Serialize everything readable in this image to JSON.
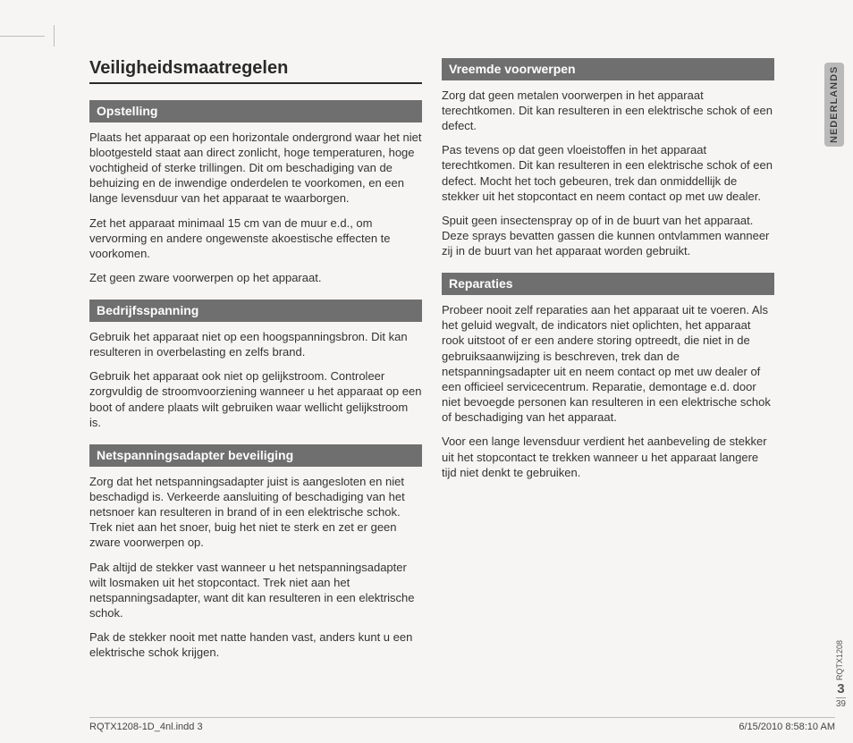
{
  "title": "Veiligheidsmaatregelen",
  "lang_tab": "NEDERLANDS",
  "side_doc": "RQTX1208",
  "side_page_big": "3",
  "side_page_small": "39",
  "footer_left": "RQTX1208-1D_4nl.indd   3",
  "footer_right": "6/15/2010   8:58:10 AM",
  "left": {
    "s1": {
      "h": "Opstelling",
      "p1": "Plaats het apparaat op een horizontale ondergrond waar het niet blootgesteld staat aan direct zonlicht, hoge temperaturen, hoge vochtigheid of sterke trillingen. Dit om beschadiging van de behuizing en de inwendige onderdelen te voorkomen, en een lange levensduur van het apparaat te waarborgen.",
      "p2": "Zet het apparaat minimaal 15 cm van de muur e.d., om vervorming en andere ongewenste akoestische effecten te voorkomen.",
      "p3": "Zet geen zware voorwerpen op het apparaat."
    },
    "s2": {
      "h": "Bedrijfsspanning",
      "p1": "Gebruik het apparaat niet op een hoogspanningsbron. Dit kan resulteren in overbelasting en zelfs brand.",
      "p2": "Gebruik het apparaat ook niet op gelijkstroom. Controleer zorgvuldig de stroomvoorziening wanneer u het apparaat op een boot of andere plaats wilt gebruiken waar wellicht gelijkstroom is."
    },
    "s3": {
      "h": "Netspanningsadapter beveiliging",
      "p1": "Zorg dat het netspanningsadapter juist is aangesloten en niet beschadigd is. Verkeerde aansluiting of beschadiging van het netsnoer kan resulteren in brand of in een elektrische schok. Trek niet aan het snoer, buig het niet te sterk en zet er geen zware voorwerpen op.",
      "p2": "Pak altijd de stekker vast wanneer u het netspanningsadapter wilt losmaken uit het stopcontact. Trek niet aan het netspanningsadapter, want dit kan resulteren in een elektrische schok.",
      "p3": "Pak de stekker nooit met natte handen vast, anders kunt u een elektrische schok krijgen."
    }
  },
  "right": {
    "s1": {
      "h": "Vreemde voorwerpen",
      "p1": "Zorg dat geen metalen voorwerpen in het apparaat terechtkomen. Dit kan resulteren in een elektrische schok of een defect.",
      "p2": "Pas tevens op dat geen vloeistoffen in het apparaat terechtkomen. Dit kan resulteren in een elektrische schok of een defect. Mocht het toch gebeuren, trek dan onmiddellijk de stekker uit het stopcontact en neem contact op met uw dealer.",
      "p3": "Spuit geen insectenspray op of in de buurt van het apparaat. Deze sprays bevatten gassen die kunnen ontvlammen wanneer zij in de buurt van het apparaat worden gebruikt."
    },
    "s2": {
      "h": "Reparaties",
      "p1": "Probeer nooit zelf reparaties aan het apparaat uit te voeren. Als het geluid wegvalt, de indicators niet oplichten, het apparaat rook uitstoot of er een andere storing optreedt, die niet in de gebruiksaanwijzing is beschreven, trek dan de netspanningsadapter uit en neem contact op met uw dealer of een officieel servicecentrum. Reparatie, demontage e.d. door niet bevoegde personen kan resulteren in een elektrische schok of beschadiging van het apparaat.",
      "p2": "Voor een lange levensduur verdient het aanbeveling de stekker uit het stopcontact te trekken wanneer u het apparaat langere tijd niet denkt te gebruiken."
    }
  }
}
